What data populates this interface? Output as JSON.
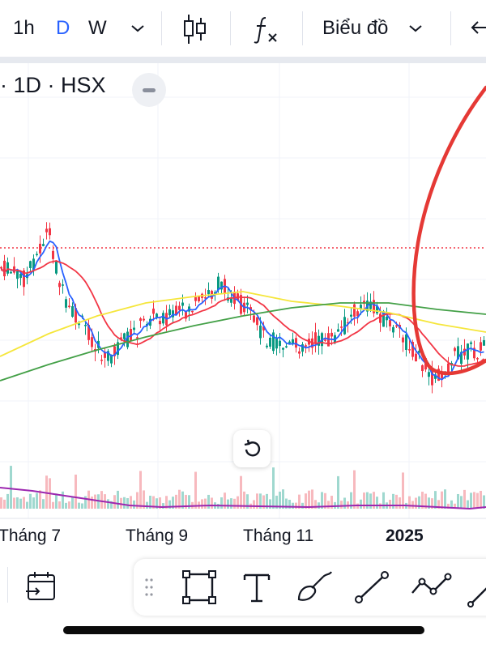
{
  "toolbar": {
    "interval_1h": "1h",
    "interval_d": "D",
    "interval_w": "W",
    "chart_type_label": "Biểu đồ",
    "active_color": "#2962ff"
  },
  "chart": {
    "symbol_info": "· 1D · HSX",
    "x_labels": [
      "Tháng 7",
      "Tháng 9",
      "Tháng 11",
      "2025"
    ],
    "colors": {
      "up": "#089981",
      "down": "#f23645",
      "ma_fast": "#2962ff",
      "ma_mid": "#f23645",
      "ma_slow": "#f5e63b",
      "ma_long": "#43a047",
      "volume_ma": "#9c27b0",
      "price_line": "#f23645",
      "annotation": "#e53935"
    }
  },
  "drawing_tools": [
    "calendar-range-icon",
    "rectangle-icon",
    "text-icon",
    "brush-icon",
    "trend-line-icon",
    "path-icon"
  ]
}
